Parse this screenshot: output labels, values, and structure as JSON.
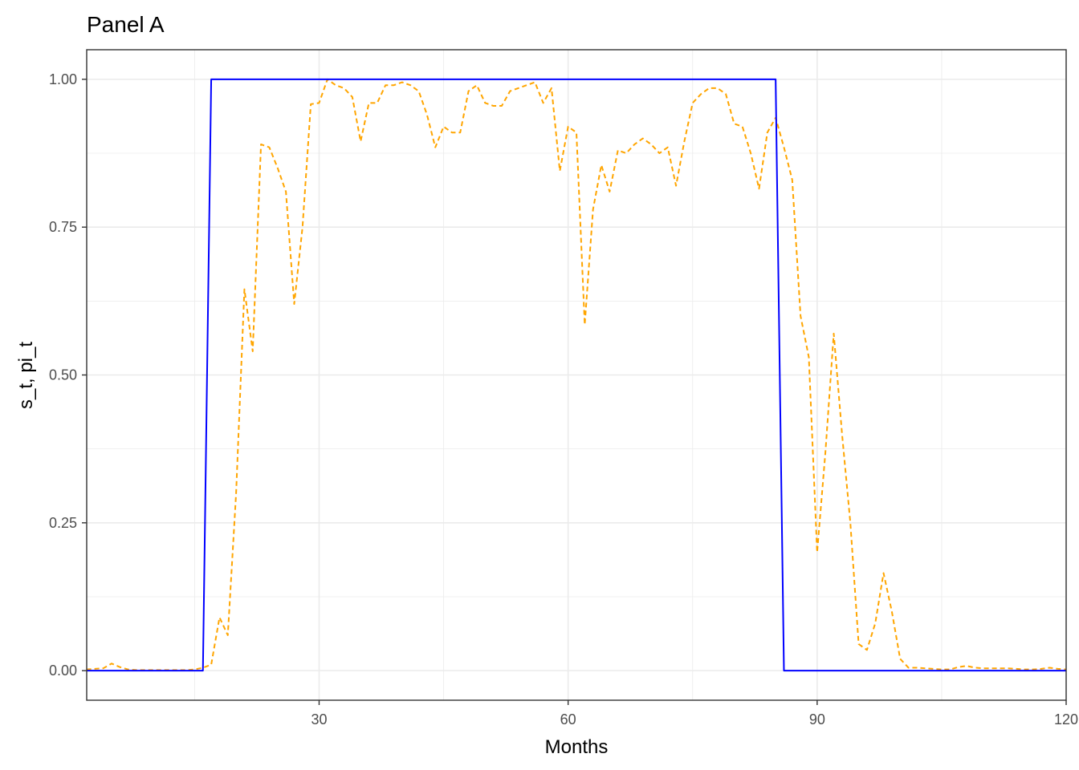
{
  "chart_data": {
    "type": "line",
    "title": "Panel A",
    "xlabel": "Months",
    "ylabel": "s_t, pi_t",
    "xlim": [
      2,
      120
    ],
    "ylim": [
      -0.05,
      1.05
    ],
    "x_ticks": [
      30,
      60,
      90,
      120
    ],
    "y_ticks": [
      0.0,
      0.25,
      0.5,
      0.75,
      1.0
    ],
    "x_tick_labels": [
      "30",
      "60",
      "90",
      "120"
    ],
    "y_tick_labels": [
      "0.00",
      "0.25",
      "0.50",
      "0.75",
      "1.00"
    ],
    "grid": true,
    "legend": "none",
    "colors": {
      "s_t": "#0000ff",
      "pi_t": "#ffa500",
      "grid": "#ebebeb",
      "border": "#333333"
    },
    "series": [
      {
        "line_style": "solid",
        "color": "#0000ff",
        "points": [
          [
            1,
            0
          ],
          [
            16,
            0
          ],
          [
            17,
            1
          ],
          [
            85,
            1
          ],
          [
            86,
            0
          ],
          [
            120,
            0
          ]
        ]
      },
      {
        "line_style": "dashed",
        "color": "#ffa500",
        "points": [
          [
            1,
            0.002
          ],
          [
            2,
            0.002
          ],
          [
            3,
            0.003
          ],
          [
            4,
            0.004
          ],
          [
            5,
            0.012
          ],
          [
            6,
            0.006
          ],
          [
            7,
            0.002
          ],
          [
            8,
            0.001
          ],
          [
            9,
            0.001
          ],
          [
            10,
            0.001
          ],
          [
            11,
            0.001
          ],
          [
            12,
            0.001
          ],
          [
            13,
            0.001
          ],
          [
            14,
            0.001
          ],
          [
            15,
            0.002
          ],
          [
            16,
            0.005
          ],
          [
            17,
            0.01
          ],
          [
            18,
            0.09
          ],
          [
            19,
            0.06
          ],
          [
            20,
            0.3
          ],
          [
            21,
            0.645
          ],
          [
            22,
            0.54
          ],
          [
            23,
            0.89
          ],
          [
            24,
            0.885
          ],
          [
            25,
            0.85
          ],
          [
            26,
            0.81
          ],
          [
            27,
            0.62
          ],
          [
            28,
            0.75
          ],
          [
            29,
            0.958
          ],
          [
            30,
            0.96
          ],
          [
            31,
            1.0
          ],
          [
            32,
            0.99
          ],
          [
            33,
            0.985
          ],
          [
            34,
            0.97
          ],
          [
            35,
            0.895
          ],
          [
            36,
            0.96
          ],
          [
            37,
            0.96
          ],
          [
            38,
            0.99
          ],
          [
            39,
            0.99
          ],
          [
            40,
            0.995
          ],
          [
            41,
            0.99
          ],
          [
            42,
            0.98
          ],
          [
            43,
            0.94
          ],
          [
            44,
            0.885
          ],
          [
            45,
            0.92
          ],
          [
            46,
            0.91
          ],
          [
            47,
            0.91
          ],
          [
            48,
            0.98
          ],
          [
            49,
            0.99
          ],
          [
            50,
            0.96
          ],
          [
            51,
            0.955
          ],
          [
            52,
            0.955
          ],
          [
            53,
            0.98
          ],
          [
            54,
            0.985
          ],
          [
            55,
            0.99
          ],
          [
            56,
            0.995
          ],
          [
            57,
            0.96
          ],
          [
            58,
            0.985
          ],
          [
            59,
            0.845
          ],
          [
            60,
            0.92
          ],
          [
            61,
            0.91
          ],
          [
            62,
            0.585
          ],
          [
            63,
            0.78
          ],
          [
            64,
            0.855
          ],
          [
            65,
            0.81
          ],
          [
            66,
            0.88
          ],
          [
            67,
            0.875
          ],
          [
            68,
            0.89
          ],
          [
            69,
            0.9
          ],
          [
            70,
            0.89
          ],
          [
            71,
            0.875
          ],
          [
            72,
            0.885
          ],
          [
            73,
            0.82
          ],
          [
            74,
            0.895
          ],
          [
            75,
            0.96
          ],
          [
            76,
            0.975
          ],
          [
            77,
            0.985
          ],
          [
            78,
            0.985
          ],
          [
            79,
            0.975
          ],
          [
            80,
            0.925
          ],
          [
            81,
            0.92
          ],
          [
            82,
            0.875
          ],
          [
            83,
            0.815
          ],
          [
            84,
            0.91
          ],
          [
            85,
            0.935
          ],
          [
            86,
            0.885
          ],
          [
            87,
            0.83
          ],
          [
            88,
            0.6
          ],
          [
            89,
            0.53
          ],
          [
            90,
            0.2
          ],
          [
            91,
            0.37
          ],
          [
            92,
            0.57
          ],
          [
            93,
            0.4
          ],
          [
            94,
            0.25
          ],
          [
            95,
            0.045
          ],
          [
            96,
            0.035
          ],
          [
            97,
            0.08
          ],
          [
            98,
            0.165
          ],
          [
            99,
            0.1
          ],
          [
            100,
            0.02
          ],
          [
            101,
            0.005
          ],
          [
            102,
            0.005
          ],
          [
            103,
            0.004
          ],
          [
            104,
            0.003
          ],
          [
            105,
            0.002
          ],
          [
            106,
            0.002
          ],
          [
            107,
            0.006
          ],
          [
            108,
            0.008
          ],
          [
            109,
            0.005
          ],
          [
            110,
            0.004
          ],
          [
            111,
            0.004
          ],
          [
            112,
            0.004
          ],
          [
            113,
            0.004
          ],
          [
            114,
            0.003
          ],
          [
            115,
            0.002
          ],
          [
            116,
            0.002
          ],
          [
            117,
            0.003
          ],
          [
            118,
            0.005
          ],
          [
            119,
            0.003
          ],
          [
            120,
            0.002
          ]
        ]
      }
    ]
  }
}
